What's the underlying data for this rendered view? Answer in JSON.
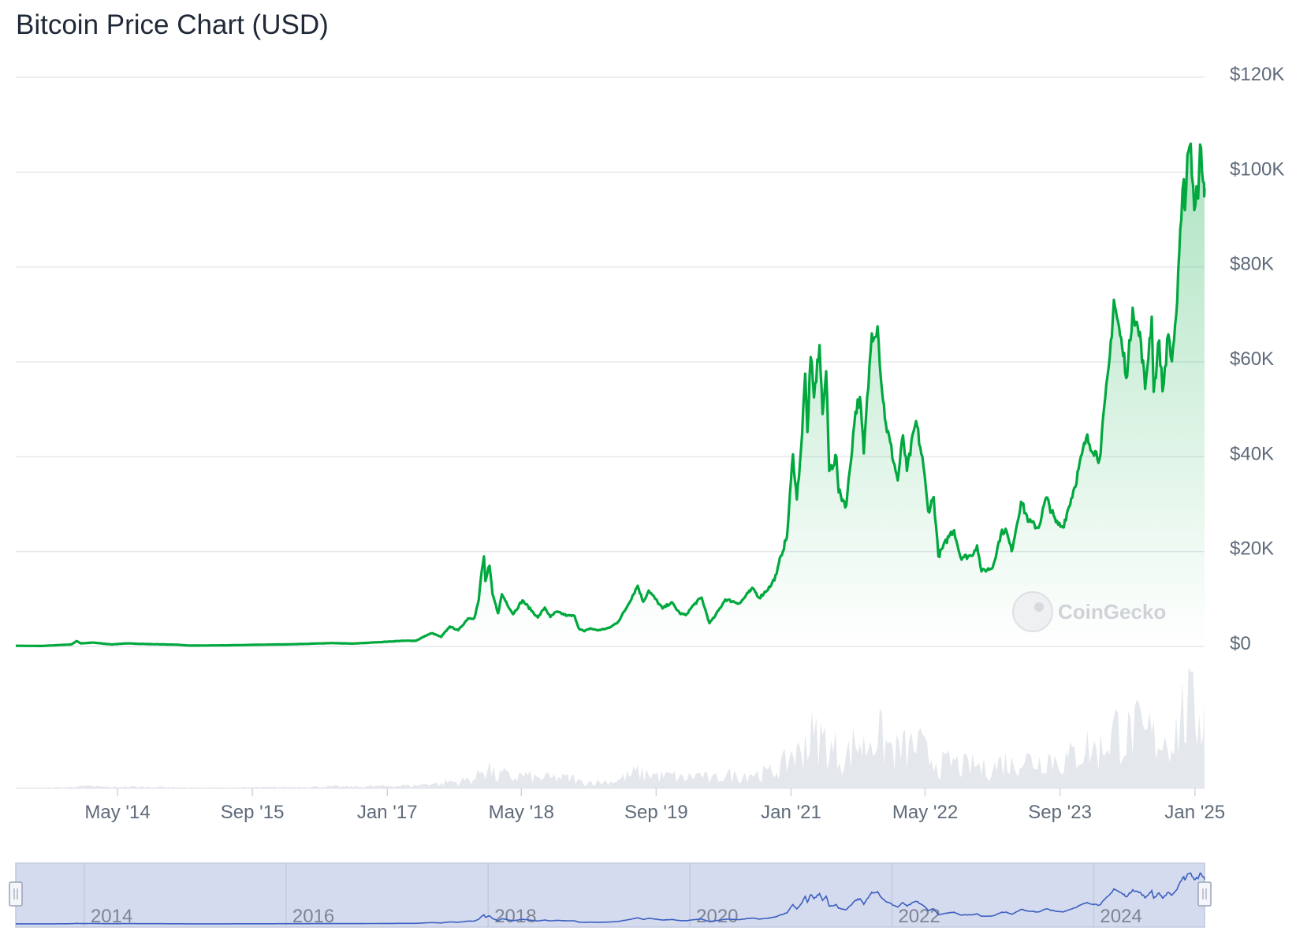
{
  "chart_data": {
    "type": "area",
    "title": "Bitcoin Price Chart (USD)",
    "currency": "USD",
    "watermark": "CoinGecko",
    "line_color": "#00a83e",
    "volume_color": "#e4e7ec",
    "navigator_fill": "#d5dbee",
    "navigator_line": "#3b5fc0",
    "grid": true,
    "legend": "none",
    "ylim": [
      0,
      120000
    ],
    "y_ticks": [
      {
        "value": 0,
        "label": "$0"
      },
      {
        "value": 20000,
        "label": "$20K"
      },
      {
        "value": 40000,
        "label": "$40K"
      },
      {
        "value": 60000,
        "label": "$60K"
      },
      {
        "value": 80000,
        "label": "$80K"
      },
      {
        "value": 100000,
        "label": "$100K"
      },
      {
        "value": 120000,
        "label": "$120K"
      }
    ],
    "x_ticks": [
      {
        "date": "2014-05-01",
        "label": "May '14"
      },
      {
        "date": "2015-09-01",
        "label": "Sep '15"
      },
      {
        "date": "2017-01-01",
        "label": "Jan '17"
      },
      {
        "date": "2018-05-01",
        "label": "May '18"
      },
      {
        "date": "2019-09-01",
        "label": "Sep '19"
      },
      {
        "date": "2021-01-01",
        "label": "Jan '21"
      },
      {
        "date": "2022-05-01",
        "label": "May '22"
      },
      {
        "date": "2023-09-01",
        "label": "Sep '23"
      },
      {
        "date": "2025-01-01",
        "label": "Jan '25"
      }
    ],
    "navigator_ticks": [
      {
        "date": "2014-01-01",
        "label": "2014"
      },
      {
        "date": "2016-01-01",
        "label": "2016"
      },
      {
        "date": "2018-01-01",
        "label": "2018"
      },
      {
        "date": "2020-01-01",
        "label": "2020"
      },
      {
        "date": "2022-01-01",
        "label": "2022"
      },
      {
        "date": "2024-01-01",
        "label": "2024"
      }
    ],
    "x_range": [
      "2013-04-28",
      "2025-02-05"
    ],
    "series": [
      {
        "values_unit": "USD",
        "points": [
          [
            "2013-04-28",
            135
          ],
          [
            "2013-08-01",
            100
          ],
          [
            "2013-11-15",
            420
          ],
          [
            "2013-12-04",
            1130
          ],
          [
            "2013-12-20",
            650
          ],
          [
            "2014-02-01",
            810
          ],
          [
            "2014-04-10",
            420
          ],
          [
            "2014-06-01",
            640
          ],
          [
            "2014-09-01",
            480
          ],
          [
            "2014-12-01",
            370
          ],
          [
            "2015-01-15",
            180
          ],
          [
            "2015-06-01",
            230
          ],
          [
            "2015-11-04",
            400
          ],
          [
            "2016-01-01",
            430
          ],
          [
            "2016-06-15",
            700
          ],
          [
            "2016-09-01",
            600
          ],
          [
            "2017-01-01",
            1000
          ],
          [
            "2017-03-01",
            1200
          ],
          [
            "2017-04-15",
            1200
          ],
          [
            "2017-05-25",
            2400
          ],
          [
            "2017-06-12",
            2800
          ],
          [
            "2017-07-15",
            2000
          ],
          [
            "2017-08-15",
            4200
          ],
          [
            "2017-09-15",
            3400
          ],
          [
            "2017-10-20",
            5900
          ],
          [
            "2017-11-12",
            6000
          ],
          [
            "2017-11-28",
            9800
          ],
          [
            "2017-12-07",
            15000
          ],
          [
            "2017-12-17",
            19000
          ],
          [
            "2017-12-22",
            13800
          ],
          [
            "2018-01-06",
            17000
          ],
          [
            "2018-01-17",
            11000
          ],
          [
            "2018-02-06",
            7000
          ],
          [
            "2018-02-20",
            11000
          ],
          [
            "2018-04-01",
            6800
          ],
          [
            "2018-05-05",
            9700
          ],
          [
            "2018-06-30",
            6100
          ],
          [
            "2018-07-25",
            8200
          ],
          [
            "2018-08-14",
            6200
          ],
          [
            "2018-09-05",
            7300
          ],
          [
            "2018-10-15",
            6500
          ],
          [
            "2018-11-10",
            6400
          ],
          [
            "2018-11-25",
            3800
          ],
          [
            "2018-12-15",
            3200
          ],
          [
            "2019-01-05",
            3800
          ],
          [
            "2019-02-01",
            3400
          ],
          [
            "2019-03-15",
            3900
          ],
          [
            "2019-04-15",
            5100
          ],
          [
            "2019-05-15",
            8000
          ],
          [
            "2019-06-26",
            12800
          ],
          [
            "2019-07-16",
            9400
          ],
          [
            "2019-08-05",
            11800
          ],
          [
            "2019-09-24",
            8000
          ],
          [
            "2019-10-26",
            9300
          ],
          [
            "2019-11-25",
            7000
          ],
          [
            "2019-12-17",
            6600
          ],
          [
            "2020-01-15",
            8800
          ],
          [
            "2020-02-12",
            10300
          ],
          [
            "2020-03-12",
            4900
          ],
          [
            "2020-04-01",
            6400
          ],
          [
            "2020-05-08",
            9900
          ],
          [
            "2020-06-30",
            9100
          ],
          [
            "2020-07-30",
            11300
          ],
          [
            "2020-08-17",
            12200
          ],
          [
            "2020-09-08",
            10200
          ],
          [
            "2020-10-21",
            12900
          ],
          [
            "2020-11-10",
            15300
          ],
          [
            "2020-11-25",
            19100
          ],
          [
            "2020-12-17",
            23000
          ],
          [
            "2021-01-08",
            40500
          ],
          [
            "2021-01-22",
            31000
          ],
          [
            "2021-02-10",
            44800
          ],
          [
            "2021-02-21",
            57500
          ],
          [
            "2021-03-01",
            45200
          ],
          [
            "2021-03-13",
            61000
          ],
          [
            "2021-03-25",
            52500
          ],
          [
            "2021-04-14",
            63500
          ],
          [
            "2021-04-25",
            49000
          ],
          [
            "2021-05-08",
            58000
          ],
          [
            "2021-05-19",
            37000
          ],
          [
            "2021-06-14",
            40000
          ],
          [
            "2021-06-22",
            32500
          ],
          [
            "2021-07-20",
            29800
          ],
          [
            "2021-08-22",
            49500
          ],
          [
            "2021-09-07",
            52600
          ],
          [
            "2021-09-21",
            40700
          ],
          [
            "2021-10-20",
            66000
          ],
          [
            "2021-11-10",
            67500
          ],
          [
            "2021-11-26",
            54000
          ],
          [
            "2021-12-10",
            47000
          ],
          [
            "2022-01-22",
            35000
          ],
          [
            "2022-02-10",
            44500
          ],
          [
            "2022-02-24",
            37000
          ],
          [
            "2022-03-29",
            47500
          ],
          [
            "2022-04-25",
            38000
          ],
          [
            "2022-05-12",
            28500
          ],
          [
            "2022-06-01",
            31500
          ],
          [
            "2022-06-18",
            19000
          ],
          [
            "2022-07-30",
            23700
          ],
          [
            "2022-08-14",
            24500
          ],
          [
            "2022-09-06",
            18800
          ],
          [
            "2022-10-15",
            19100
          ],
          [
            "2022-11-05",
            21300
          ],
          [
            "2022-11-21",
            15800
          ],
          [
            "2022-12-31",
            16600
          ],
          [
            "2023-01-30",
            23700
          ],
          [
            "2023-02-16",
            24800
          ],
          [
            "2023-03-10",
            20100
          ],
          [
            "2023-04-13",
            30500
          ],
          [
            "2023-05-12",
            26300
          ],
          [
            "2023-06-15",
            25000
          ],
          [
            "2023-07-13",
            31400
          ],
          [
            "2023-08-17",
            26200
          ],
          [
            "2023-09-11",
            25100
          ],
          [
            "2023-10-23",
            33500
          ],
          [
            "2023-12-05",
            44000
          ],
          [
            "2024-01-22",
            39500
          ],
          [
            "2024-02-28",
            61000
          ],
          [
            "2024-03-14",
            73100
          ],
          [
            "2024-04-13",
            63000
          ],
          [
            "2024-05-01",
            57000
          ],
          [
            "2024-05-21",
            71400
          ],
          [
            "2024-06-20",
            64000
          ],
          [
            "2024-07-05",
            54300
          ],
          [
            "2024-07-29",
            69500
          ],
          [
            "2024-08-05",
            53700
          ],
          [
            "2024-08-25",
            64500
          ],
          [
            "2024-09-06",
            53800
          ],
          [
            "2024-09-27",
            65800
          ],
          [
            "2024-10-10",
            60100
          ],
          [
            "2024-10-29",
            72700
          ],
          [
            "2024-11-13",
            90000
          ],
          [
            "2024-11-22",
            98500
          ],
          [
            "2024-11-26",
            92000
          ],
          [
            "2024-12-05",
            103700
          ],
          [
            "2024-12-17",
            106000
          ],
          [
            "2024-12-30",
            92000
          ],
          [
            "2025-01-07",
            97000
          ],
          [
            "2025-01-13",
            94400
          ],
          [
            "2025-01-20",
            105800
          ],
          [
            "2025-01-27",
            100000
          ],
          [
            "2025-02-03",
            97700
          ],
          [
            "2025-02-05",
            96600
          ]
        ]
      }
    ]
  }
}
